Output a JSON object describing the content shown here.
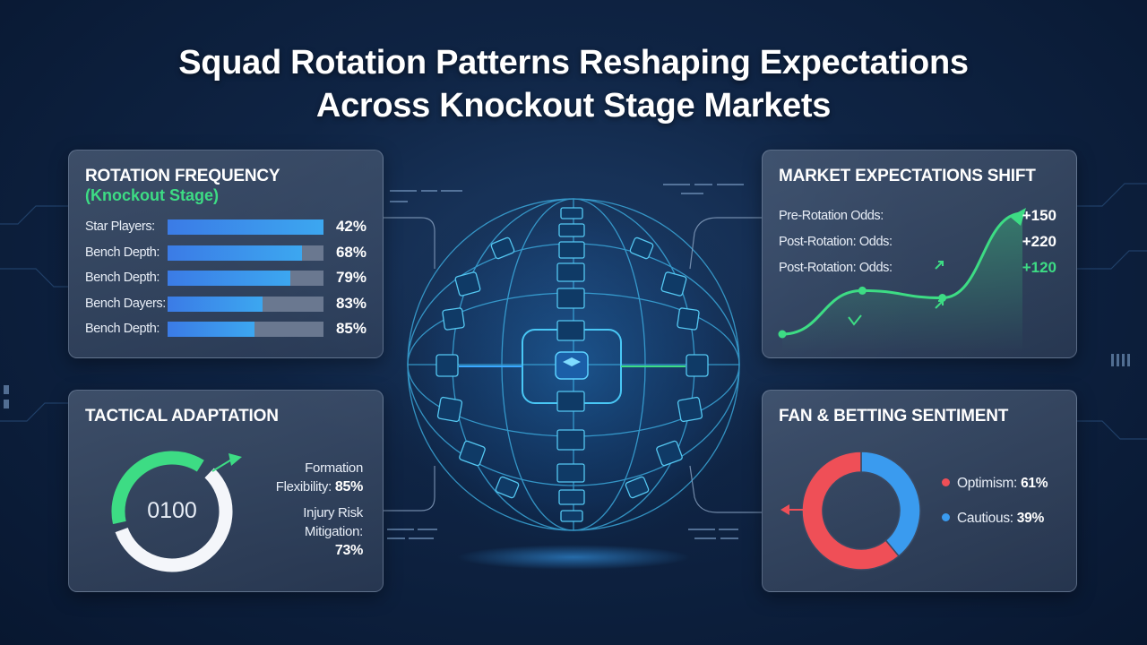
{
  "title": {
    "line1": "Squad Rotation Patterns Reshaping Expectations",
    "line2": "Across Knockout Stage Markets"
  },
  "colors": {
    "accent_green": "#3ddc84",
    "bar_blue": "#3ca7f0",
    "bar_blue_dark": "#3b7be6",
    "sentiment_red": "#ef4f57",
    "sentiment_blue": "#3a9bef",
    "glow_cyan": "#39d3f7"
  },
  "rotation": {
    "title": "ROTATION FREQUENCY",
    "subtitle": "(Knockout Stage)"
  },
  "market": {
    "title": "MARKET EXPECTATIONS SHIFT",
    "rows": [
      {
        "label": "Pre-Rotation Odds:",
        "value": "+150",
        "color": "#ffffff"
      },
      {
        "label": "Post-Rotation: Odds:",
        "value": "+220",
        "color": "#ffffff"
      },
      {
        "label": "Post-Rotation: Odds:",
        "value": "+120",
        "color": "#3ddc84"
      }
    ]
  },
  "tactical": {
    "title": "TACTICAL ADAPTATION",
    "gauge_label": "0100",
    "gauge_value": 0.28,
    "metric1_line1": "Formation",
    "metric1_line2": "Flexibility:",
    "metric1_value": "85%",
    "metric2_line1": "Injury Risk",
    "metric2_line2": "Mitigation:",
    "metric2_value": "73%"
  },
  "sentiment": {
    "title": "FAN & BETTING SENTIMENT",
    "items": [
      {
        "label": "Optimism:",
        "value": "61%",
        "color": "#ef4f57"
      },
      {
        "label": "Cautious:",
        "value": "39%",
        "color": "#3a9bef"
      }
    ]
  },
  "chart_data": [
    {
      "type": "bar",
      "title": "ROTATION FREQUENCY",
      "subtitle": "(Knockout Stage)",
      "categories": [
        "Star Players:",
        "Bench Depth:",
        "Bench Depth:",
        "Bench Dayers:",
        "Bench Depth:"
      ],
      "values": [
        42,
        68,
        79,
        83,
        85
      ],
      "labels": [
        "42%",
        "68%",
        "79%",
        "83%",
        "85%"
      ],
      "fill_fraction": [
        1.0,
        0.86,
        0.79,
        0.61,
        0.56
      ],
      "orientation": "horizontal",
      "grid": false
    },
    {
      "type": "line",
      "title": "MARKET EXPECTATIONS SHIFT",
      "x": [
        0,
        1,
        2,
        3
      ],
      "y": [
        0.0,
        0.36,
        0.3,
        1.0
      ],
      "axes": false,
      "grid": false
    },
    {
      "type": "pie",
      "title": "FAN & BETTING SENTIMENT",
      "categories": [
        "Optimism:",
        "Cautious:"
      ],
      "values": [
        61,
        39
      ],
      "labels": [
        "61%",
        "39%"
      ],
      "legend": "right",
      "donut": true
    }
  ]
}
